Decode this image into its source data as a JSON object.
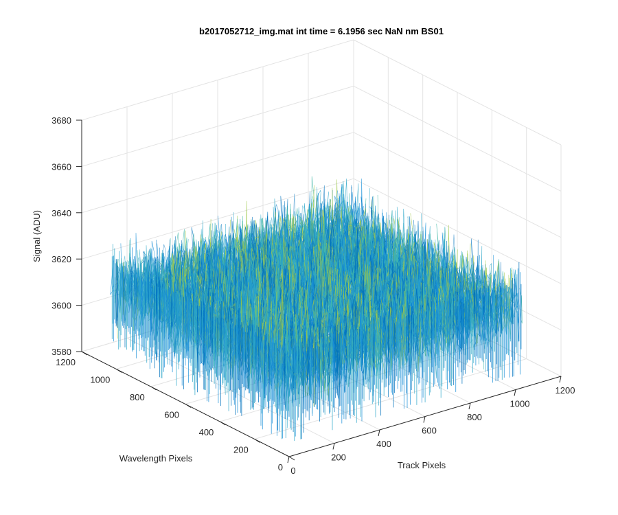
{
  "chart_data": {
    "type": "surface",
    "title": "b2017052712_img.mat int time = 6.1956 sec  NaN nm BS01",
    "xlabel": "Track Pixels",
    "ylabel": "Wavelength Pixels",
    "zlabel": "Signal (ADU)",
    "xlim": [
      0,
      1200
    ],
    "ylim": [
      0,
      1200
    ],
    "zlim": [
      3580,
      3680
    ],
    "xticks": [
      0,
      200,
      400,
      600,
      800,
      1000,
      1200
    ],
    "yticks": [
      0,
      200,
      400,
      600,
      800,
      1000,
      1200
    ],
    "zticks": [
      3580,
      3600,
      3620,
      3640,
      3660,
      3680
    ],
    "grid": true,
    "data_extent": {
      "x": [
        0,
        1024
      ],
      "y": [
        0,
        1024
      ]
    },
    "mean_signal": 3615,
    "noise_std": 6,
    "colormap": [
      "#0072bd",
      "#1a90d8",
      "#2ea7c9",
      "#44b8a8",
      "#9cc84a"
    ]
  }
}
